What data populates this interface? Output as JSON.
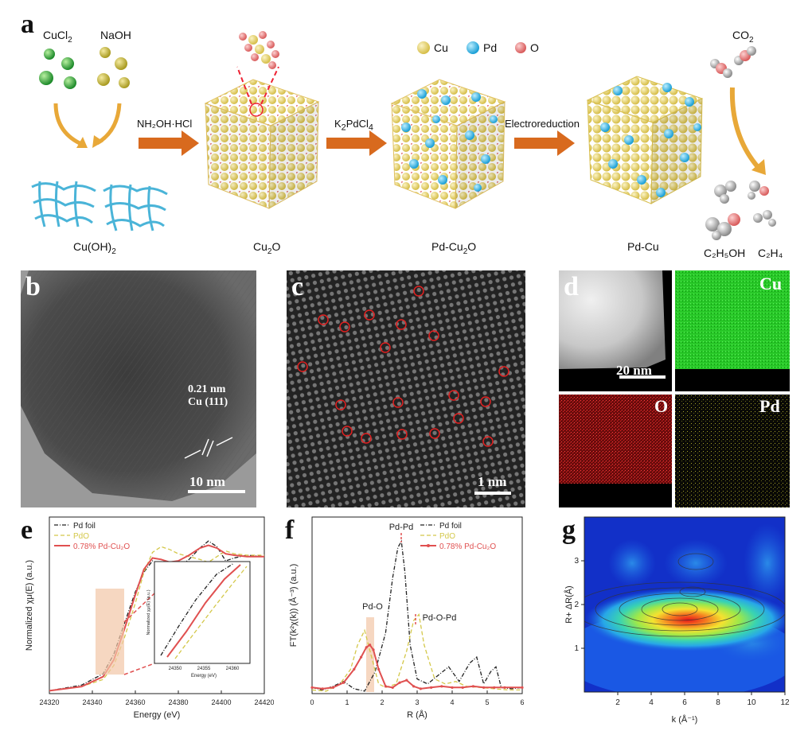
{
  "panels": {
    "a": "a",
    "b": "b",
    "c": "c",
    "d": "d",
    "e": "e",
    "f": "f",
    "g": "g"
  },
  "scheme": {
    "reagent_cucl2": "CuCl",
    "reagent_cucl2_sub": "2",
    "reagent_naoh": "NaOH",
    "legend_cu": "Cu",
    "legend_pd": "Pd",
    "legend_o": "O",
    "co2": "CO",
    "co2_sub": "2",
    "step1": "NH₂OH·HCl",
    "step2_main": "K",
    "step2_sub1": "2",
    "step2_mid": "PdCl",
    "step2_sub2": "4",
    "step3": "Electroreduction",
    "cuoh2_main": "Cu(OH)",
    "cuoh2_sub": "2",
    "cu2o_main": "Cu",
    "cu2o_sub": "2",
    "cu2o_tail": "O",
    "pdcu2o_main": "Pd-Cu",
    "pdcu2o_sub": "2",
    "pdcu2o_tail": "O",
    "pdcu": "Pd-Cu",
    "c2h5oh": "C₂H₅OH",
    "c2h4": "C₂H₄",
    "colors": {
      "cu": "#e8d56a",
      "pd": "#2fb6e6",
      "o": "#e67a7a",
      "arrow": "#d86a1e",
      "mesh": "#3fb0d8"
    }
  },
  "panel_b": {
    "dspacing": "0.21 nm",
    "plane": "Cu (111)",
    "scalebar": "10 nm"
  },
  "panel_c": {
    "scalebar": "1 nm"
  },
  "panel_d": {
    "haadf_scale": "20 nm",
    "cu": "Cu",
    "o": "O",
    "pd": "Pd",
    "colors": {
      "cu": "#39e83a",
      "o": "#d62020",
      "pd": "#c9c430"
    }
  },
  "chart_data": [
    {
      "id": "e",
      "type": "line",
      "ylabel": "Normalized χμ(E) (a.u.)",
      "xlabel": "Energy (eV)",
      "xlim": [
        24320,
        24420
      ],
      "xticks": [
        "24320",
        "24340",
        "24360",
        "24380",
        "24400",
        "24420"
      ],
      "series": [
        {
          "name": "Pd foil",
          "color": "#222222",
          "x": [
            24320,
            24335,
            24345,
            24350,
            24355,
            24360,
            24364,
            24368,
            24372,
            24376,
            24380,
            24385,
            24390,
            24394,
            24398,
            24402,
            24406,
            24412,
            24420
          ],
          "y": [
            0.02,
            0.06,
            0.14,
            0.28,
            0.5,
            0.72,
            0.86,
            0.94,
            0.9,
            0.87,
            0.89,
            0.95,
            1.03,
            1.08,
            1.04,
            0.94,
            0.96,
            0.98,
            0.97
          ]
        },
        {
          "name": "PdO",
          "color": "#d4c84a",
          "x": [
            24320,
            24335,
            24345,
            24350,
            24355,
            24360,
            24364,
            24368,
            24372,
            24376,
            24380,
            24385,
            24390,
            24394,
            24398,
            24402,
            24406,
            24412,
            24420
          ],
          "y": [
            0.02,
            0.05,
            0.1,
            0.2,
            0.4,
            0.64,
            0.86,
            1.0,
            1.04,
            1.02,
            0.99,
            0.97,
            0.95,
            0.93,
            0.97,
            1.01,
            0.99,
            0.98,
            0.98
          ]
        },
        {
          "name": "0.78% Pd-Cu₂O",
          "color": "#e05050",
          "x": [
            24320,
            24335,
            24345,
            24350,
            24355,
            24360,
            24364,
            24368,
            24372,
            24376,
            24380,
            24385,
            24390,
            24394,
            24398,
            24402,
            24406,
            24412,
            24420
          ],
          "y": [
            0.02,
            0.05,
            0.12,
            0.24,
            0.46,
            0.7,
            0.88,
            0.96,
            0.95,
            0.93,
            0.94,
            0.98,
            1.03,
            1.05,
            1.03,
            0.99,
            0.98,
            0.97,
            0.97
          ]
        }
      ],
      "inset": {
        "ylabel": "Normalized χμ(E) (a.u.)",
        "xlabel": "Energy (eV)",
        "xticks": [
          "24350",
          "24355",
          "24360"
        ]
      }
    },
    {
      "id": "f",
      "type": "line",
      "ylabel": "FT(k²χ(k)) (Å⁻³) (a.u.)",
      "xlabel": "R (Å)",
      "xlim": [
        0,
        6
      ],
      "xticks": [
        "0",
        "1",
        "2",
        "3",
        "4",
        "5",
        "6"
      ],
      "annotations": [
        "Pd-Pd",
        "Pd-O",
        "Pd-O-Pd"
      ],
      "series": [
        {
          "name": "Pd foil",
          "color": "#222222",
          "x": [
            0,
            0.3,
            0.6,
            0.9,
            1.2,
            1.5,
            1.8,
            2.1,
            2.3,
            2.45,
            2.55,
            2.65,
            2.8,
            3.0,
            3.3,
            3.6,
            3.9,
            4.2,
            4.5,
            4.7,
            4.9,
            5.1,
            5.25,
            5.4,
            5.7,
            6
          ],
          "y": [
            0.05,
            0.03,
            0.06,
            0.1,
            0.04,
            0.02,
            0.18,
            0.5,
            0.95,
            1.2,
            1.25,
            1.0,
            0.4,
            0.12,
            0.08,
            0.15,
            0.22,
            0.1,
            0.25,
            0.3,
            0.08,
            0.18,
            0.22,
            0.05,
            0.04,
            0.05
          ]
        },
        {
          "name": "PdO",
          "color": "#d4c84a",
          "x": [
            0,
            0.4,
            0.8,
            1.1,
            1.3,
            1.5,
            1.7,
            1.9,
            2.1,
            2.4,
            2.7,
            2.9,
            3.05,
            3.2,
            3.5,
            3.8,
            4.1,
            4.4,
            4.8,
            5.2,
            5.6,
            6
          ],
          "y": [
            0.03,
            0.02,
            0.08,
            0.2,
            0.4,
            0.52,
            0.3,
            0.08,
            0.05,
            0.08,
            0.35,
            0.6,
            0.65,
            0.4,
            0.12,
            0.08,
            0.1,
            0.06,
            0.05,
            0.04,
            0.03,
            0.03
          ]
        },
        {
          "name": "0.78% Pd-Cu₂O",
          "color": "#e05050",
          "x": [
            0,
            0.3,
            0.6,
            0.9,
            1.2,
            1.4,
            1.55,
            1.65,
            1.75,
            1.9,
            2.1,
            2.3,
            2.5,
            2.7,
            2.9,
            3.1,
            3.4,
            3.7,
            4.0,
            4.3,
            4.6,
            4.9,
            5.2,
            5.5,
            6
          ],
          "y": [
            0.05,
            0.04,
            0.05,
            0.09,
            0.2,
            0.3,
            0.38,
            0.4,
            0.36,
            0.2,
            0.06,
            0.05,
            0.09,
            0.11,
            0.06,
            0.04,
            0.05,
            0.06,
            0.05,
            0.05,
            0.06,
            0.05,
            0.05,
            0.05,
            0.05
          ]
        }
      ]
    },
    {
      "id": "g",
      "type": "heatmap",
      "ylabel": "R+ ΔR(Å)",
      "xlabel": "k (Å⁻¹)",
      "xlim": [
        0,
        12
      ],
      "ylim": [
        0,
        4
      ],
      "xticks": [
        "2",
        "4",
        "6",
        "8",
        "10",
        "12"
      ],
      "yticks": [
        "1",
        "2",
        "3"
      ],
      "peak": {
        "k": 6.2,
        "r": 1.65
      }
    }
  ]
}
